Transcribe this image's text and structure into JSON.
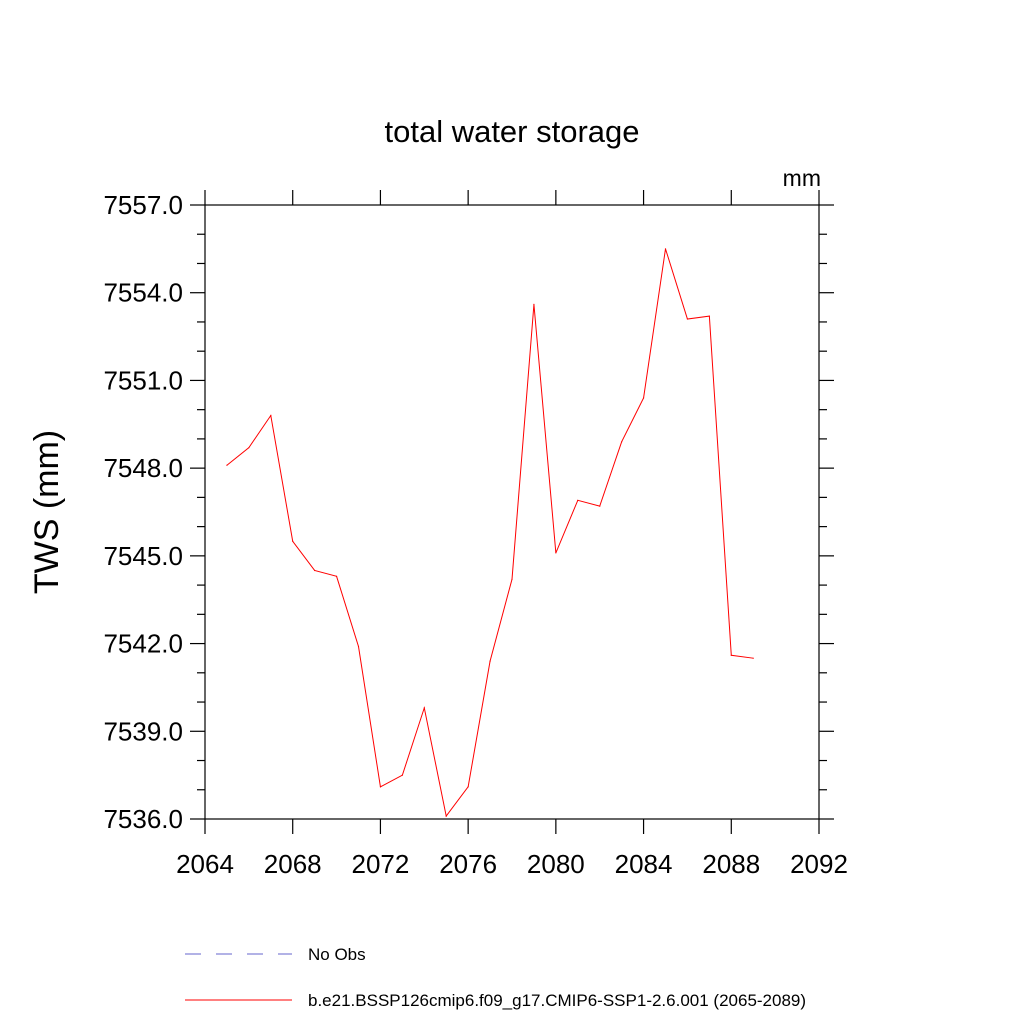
{
  "chart_data": {
    "type": "line",
    "title": "total water storage",
    "units_label": "mm",
    "ylabel": "TWS  (mm)",
    "xlabel": "",
    "xlim": [
      2064,
      2092
    ],
    "ylim": [
      7536.0,
      7557.0
    ],
    "x_ticks": [
      2064,
      2068,
      2072,
      2076,
      2080,
      2084,
      2088,
      2092
    ],
    "x_tick_labels": [
      "2064",
      "2068",
      "2072",
      "2076",
      "2080",
      "2084",
      "2088",
      "2092"
    ],
    "y_ticks": [
      7536.0,
      7539.0,
      7542.0,
      7545.0,
      7548.0,
      7551.0,
      7554.0,
      7557.0
    ],
    "y_tick_labels": [
      "7536.0",
      "7539.0",
      "7542.0",
      "7545.0",
      "7548.0",
      "7551.0",
      "7554.0",
      "7557.0"
    ],
    "grid": false,
    "legend_position": "bottom",
    "series": [
      {
        "name": "No Obs",
        "color": "#6666cc",
        "style": "dashed",
        "x": [],
        "values": []
      },
      {
        "name": "b.e21.BSSP126cmip6.f09_g17.CMIP6-SSP1-2.6.001 (2065-2089)",
        "color": "#ff0000",
        "style": "solid",
        "x": [
          2065,
          2066,
          2067,
          2068,
          2069,
          2070,
          2071,
          2072,
          2073,
          2074,
          2075,
          2076,
          2077,
          2078,
          2079,
          2080,
          2081,
          2082,
          2083,
          2084,
          2085,
          2086,
          2087,
          2088,
          2089
        ],
        "values": [
          7548.1,
          7548.7,
          7549.8,
          7545.5,
          7544.5,
          7544.3,
          7541.9,
          7537.1,
          7537.5,
          7539.8,
          7536.1,
          7537.1,
          7541.4,
          7544.2,
          7553.6,
          7545.1,
          7546.9,
          7546.7,
          7548.9,
          7550.4,
          7555.5,
          7553.1,
          7553.2,
          7541.6,
          7541.5
        ]
      }
    ]
  }
}
